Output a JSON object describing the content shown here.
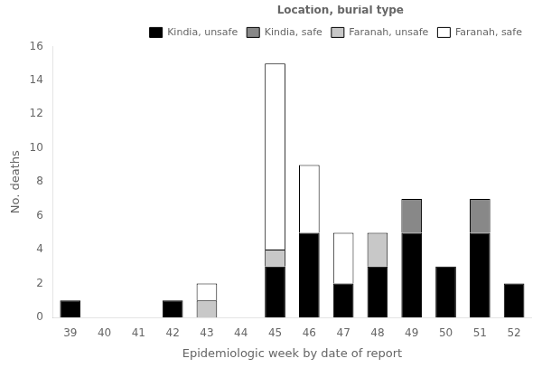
{
  "chart_data": {
    "type": "bar",
    "stacked": true,
    "categories": [
      "39",
      "40",
      "41",
      "42",
      "43",
      "44",
      "45",
      "46",
      "47",
      "48",
      "49",
      "50",
      "51",
      "52"
    ],
    "series": [
      {
        "name": "Kindia, unsafe",
        "color": "#000000",
        "values": [
          1,
          0,
          0,
          1,
          0,
          0,
          3,
          5,
          2,
          3,
          5,
          3,
          5,
          2
        ]
      },
      {
        "name": "Kindia, safe",
        "color": "#888888",
        "values": [
          0,
          0,
          0,
          0,
          0,
          0,
          0,
          0,
          0,
          0,
          2,
          0,
          2,
          0
        ]
      },
      {
        "name": "Faranah, unsafe",
        "color": "#c8c8c8",
        "values": [
          0,
          0,
          0,
          0,
          1,
          0,
          1,
          0,
          0,
          2,
          0,
          0,
          0,
          0
        ]
      },
      {
        "name": "Faranah, safe",
        "color": "#ffffff",
        "values": [
          0,
          0,
          0,
          0,
          1,
          0,
          11,
          4,
          3,
          0,
          0,
          0,
          0,
          0
        ]
      }
    ],
    "xlabel": "Epidemiologic week by date of report",
    "ylabel": "No. deaths",
    "ylim": [
      0,
      16
    ],
    "yticks": [
      0,
      2,
      4,
      6,
      8,
      10,
      12,
      14,
      16
    ],
    "legend": "upper right",
    "legend_title": "Location, burial type",
    "grid": false
  }
}
